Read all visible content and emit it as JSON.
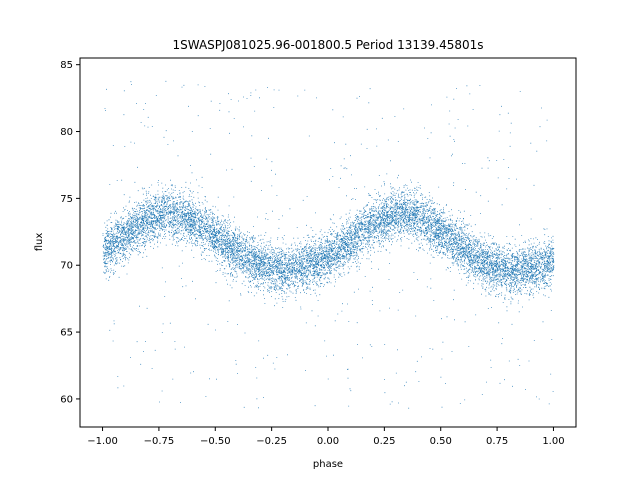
{
  "chart_data": {
    "type": "scatter",
    "title": "1SWASPJ081025.96-001800.5 Period 13139.45801s",
    "xlabel": "phase",
    "ylabel": "flux",
    "xlim": [
      -1.1,
      1.1
    ],
    "ylim": [
      57.9,
      85.5
    ],
    "x_ticks": [
      -1.0,
      -0.75,
      -0.5,
      -0.25,
      0.0,
      0.25,
      0.5,
      0.75,
      1.0
    ],
    "x_tick_labels": [
      "−1.00",
      "−0.75",
      "−0.50",
      "−0.25",
      "0.00",
      "0.25",
      "0.50",
      "0.75",
      "1.00"
    ],
    "y_ticks": [
      60,
      65,
      70,
      75,
      80,
      85
    ],
    "y_tick_labels": [
      "60",
      "65",
      "70",
      "75",
      "80",
      "85"
    ],
    "grid": false,
    "legend": "none",
    "marker_color": "#1f77b4",
    "series": [
      {
        "x": [
          -1.0,
          -0.95,
          -0.9,
          -0.85,
          -0.8,
          -0.75,
          -0.7,
          -0.65,
          -0.6,
          -0.55,
          -0.5,
          -0.45,
          -0.4,
          -0.35,
          -0.3,
          -0.25,
          -0.2,
          -0.15,
          -0.1,
          -0.05,
          0.0,
          0.05,
          0.1,
          0.15,
          0.2,
          0.25,
          0.3,
          0.35,
          0.4,
          0.45,
          0.5,
          0.55,
          0.6,
          0.65,
          0.7,
          0.75,
          0.8,
          0.85,
          0.9,
          0.95,
          1.0
        ],
        "y": [
          71.0,
          71.6,
          72.3,
          72.9,
          73.4,
          73.8,
          73.9,
          73.7,
          73.3,
          72.8,
          72.2,
          71.5,
          70.9,
          70.4,
          70.0,
          69.8,
          69.7,
          69.8,
          70.0,
          70.3,
          70.7,
          71.2,
          71.8,
          72.5,
          73.1,
          73.6,
          73.9,
          73.9,
          73.6,
          73.1,
          72.5,
          71.9,
          71.2,
          70.6,
          70.1,
          69.8,
          69.7,
          69.7,
          69.8,
          70.0,
          70.4
        ],
        "scatter_sd": 0.9,
        "n_points": 12000,
        "outlier_y_range": [
          59.3,
          84.0
        ]
      }
    ]
  }
}
